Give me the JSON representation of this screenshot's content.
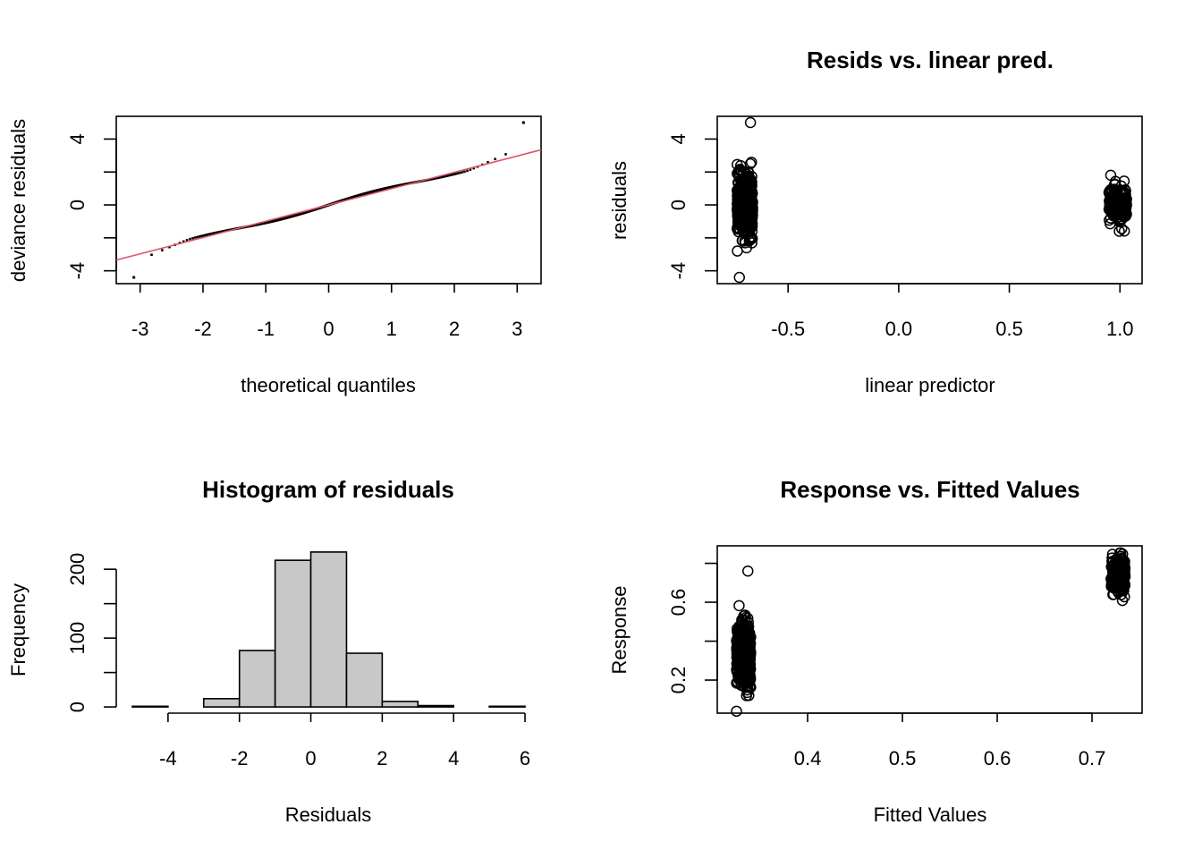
{
  "chart_data": [
    {
      "type": "scatter",
      "subtype": "qq",
      "title": "",
      "xlabel": "theoretical quantiles",
      "ylabel": "deviance residuals",
      "xlim": [
        -3.38,
        3.38
      ],
      "ylim": [
        -4.78,
        5.38
      ],
      "xticks": [
        -3,
        -2,
        -1,
        0,
        1,
        2,
        3
      ],
      "xtick_labels": [
        "-3",
        "-2",
        "-1",
        "0",
        "1",
        "2",
        "3"
      ],
      "yticks": [
        -4,
        -2,
        0,
        2,
        4
      ],
      "ytick_labels": [
        "-4",
        "",
        "0",
        "",
        "4"
      ],
      "n_points": 620,
      "reference_line": {
        "intercept": 0.0,
        "slope": 0.99,
        "color": "#DF536B"
      },
      "outliers": [
        {
          "x": -3.1,
          "y": -4.4
        },
        {
          "x": 3.1,
          "y": 5.0
        }
      ],
      "point_color": "#000000"
    },
    {
      "type": "scatter",
      "title": "Resids vs. linear pred.",
      "xlabel": "linear predictor",
      "ylabel": "residuals",
      "xlim": [
        -0.82,
        1.1
      ],
      "ylim": [
        -4.78,
        5.38
      ],
      "xticks": [
        -0.5,
        0.0,
        0.5,
        1.0
      ],
      "xtick_labels": [
        "-0.5",
        "0.0",
        "0.5",
        "1.0"
      ],
      "yticks": [
        -4,
        -2,
        0,
        2,
        4
      ],
      "ytick_labels": [
        "-4",
        "",
        "0",
        "",
        "4"
      ],
      "clusters": [
        {
          "x_range": [
            -0.73,
            -0.66
          ],
          "y_mean": 0.0,
          "y_sd": 0.9,
          "y_range": [
            -2.8,
            3.1
          ],
          "n": 450
        },
        {
          "x_range": [
            0.95,
            1.03
          ],
          "y_mean": 0.0,
          "y_sd": 0.6,
          "y_range": [
            -1.6,
            1.8
          ],
          "n": 170
        }
      ],
      "outliers": [
        {
          "x": -0.67,
          "y": 5.0
        },
        {
          "x": -0.72,
          "y": -4.4
        }
      ]
    },
    {
      "type": "bar",
      "subtype": "histogram",
      "title": "Histogram of residuals",
      "xlabel": "Residuals",
      "ylabel": "Frequency",
      "bin_edges": [
        -5,
        -4,
        -3,
        -2,
        -1,
        0,
        1,
        2,
        3,
        4,
        5,
        6
      ],
      "values": [
        1,
        0,
        12,
        82,
        213,
        225,
        78,
        8,
        2,
        0,
        1
      ],
      "xlim": [
        -5.45,
        6.45
      ],
      "ylim": [
        -9,
        234
      ],
      "xticks": [
        -4,
        -2,
        0,
        2,
        4,
        6
      ],
      "xtick_labels": [
        "-4",
        "-2",
        "0",
        "2",
        "4",
        "6"
      ],
      "yticks": [
        0,
        50,
        100,
        150,
        200
      ],
      "ytick_labels": [
        "0",
        "",
        "100",
        "",
        "200"
      ],
      "bar_color": "#C8C8C8"
    },
    {
      "type": "scatter",
      "title": "Response vs. Fitted Values",
      "xlabel": "Fitted Values",
      "ylabel": "Response",
      "xlim": [
        0.3047,
        0.7528
      ],
      "ylim": [
        0.03,
        0.89
      ],
      "xticks": [
        0.4,
        0.5,
        0.6,
        0.7
      ],
      "xtick_labels": [
        "0.4",
        "0.5",
        "0.6",
        "0.7"
      ],
      "yticks": [
        0.2,
        0.4,
        0.6,
        0.8
      ],
      "ytick_labels": [
        "0.2",
        "",
        "0.6",
        ""
      ],
      "clusters": [
        {
          "x_range": [
            0.325,
            0.34
          ],
          "y_mean": 0.33,
          "y_sd": 0.08,
          "y_range": [
            0.12,
            0.6
          ],
          "n": 450
        },
        {
          "x_range": [
            0.72,
            0.735
          ],
          "y_mean": 0.74,
          "y_sd": 0.05,
          "y_range": [
            0.6,
            0.86
          ],
          "n": 170
        }
      ],
      "outliers": [
        {
          "x": 0.337,
          "y": 0.76
        },
        {
          "x": 0.325,
          "y": 0.04
        }
      ]
    }
  ]
}
